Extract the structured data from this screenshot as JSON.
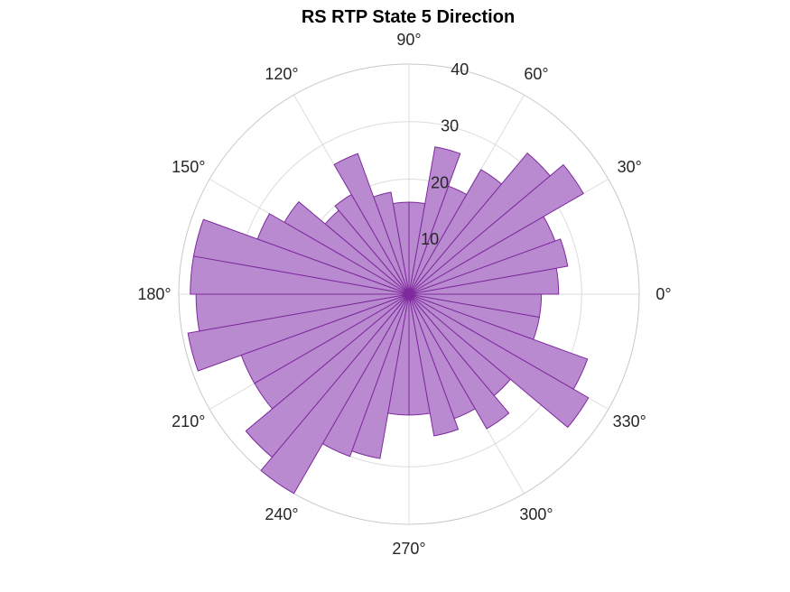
{
  "chart_data": {
    "type": "polar-histogram",
    "title": "RS  RTP State 5 Direction",
    "rlim": [
      0,
      40
    ],
    "r_ticks": [
      10,
      20,
      30,
      40
    ],
    "theta_ticks": [
      "0°",
      "30°",
      "60°",
      "90°",
      "120°",
      "150°",
      "180°",
      "210°",
      "240°",
      "270°",
      "300°",
      "330°"
    ],
    "bin_width_deg": 10,
    "bin_start_deg": [
      0,
      10,
      20,
      30,
      40,
      50,
      60,
      70,
      80,
      90,
      100,
      110,
      120,
      130,
      140,
      150,
      160,
      170,
      180,
      190,
      200,
      210,
      220,
      230,
      240,
      250,
      260,
      270,
      280,
      290,
      300,
      310,
      320,
      330,
      340,
      350
    ],
    "values": [
      26,
      28,
      27,
      35,
      32,
      25,
      20,
      26,
      16,
      16,
      18,
      26,
      20,
      19,
      25,
      28,
      38,
      38,
      37,
      39,
      31,
      31,
      37,
      40,
      30,
      29,
      21,
      21,
      25,
      23,
      27,
      23,
      36,
      33,
      23,
      23
    ],
    "colors": {
      "fill": "#b98acf",
      "stroke": "#7e2a9e",
      "center": "#7e2a9e"
    },
    "grid": true
  }
}
